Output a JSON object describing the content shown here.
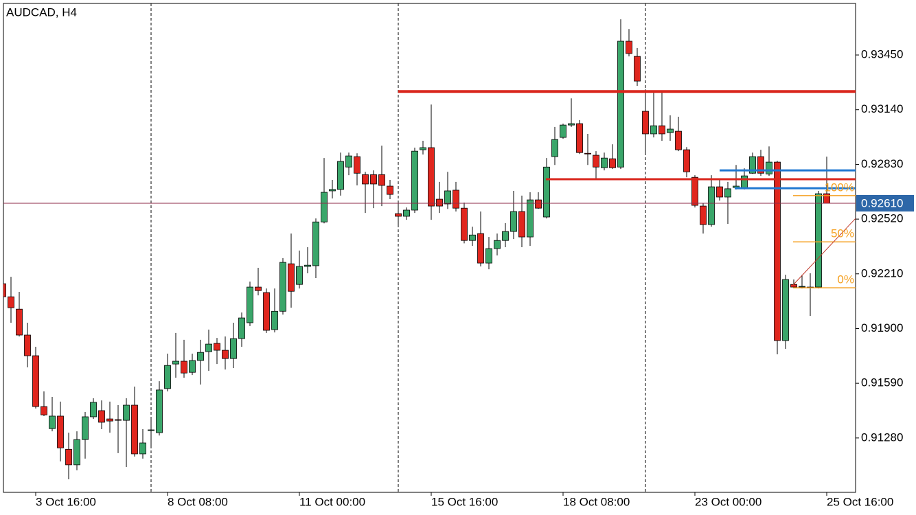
{
  "chart_data": {
    "type": "candlestick",
    "title": "AUDCAD, H4",
    "categories": [
      null,
      null,
      null,
      null,
      "3 Oct 16:00",
      null,
      null,
      null,
      null,
      null,
      null,
      null,
      null,
      null,
      null,
      null,
      null,
      null,
      null,
      null,
      "8 Oct 08:00",
      null,
      null,
      null,
      null,
      null,
      null,
      null,
      null,
      null,
      null,
      null,
      null,
      null,
      null,
      null,
      "11 Oct 00:00",
      null,
      null,
      null,
      null,
      null,
      null,
      null,
      null,
      null,
      null,
      null,
      null,
      null,
      null,
      null,
      "15 Oct 16:00",
      null,
      null,
      null,
      null,
      null,
      null,
      null,
      null,
      null,
      null,
      null,
      null,
      null,
      null,
      null,
      "18 Oct 08:00",
      null,
      null,
      null,
      null,
      null,
      null,
      null,
      null,
      null,
      null,
      null,
      null,
      null,
      null,
      null,
      "23 Oct 00:00",
      null,
      null,
      null,
      null,
      null,
      null,
      null,
      null,
      null,
      null,
      null,
      null,
      null,
      null,
      null,
      "25 Oct 16:00"
    ],
    "open": [
      0.92154,
      0.9208,
      0.9201,
      0.91863,
      0.91746,
      0.91458,
      0.91333,
      0.91404,
      0.91216,
      0.91128,
      0.91271,
      0.914,
      0.91435,
      0.91388,
      0.91384,
      0.9138,
      0.91466,
      0.9119,
      0.91322,
      0.9131,
      0.9156,
      0.91699,
      0.91715,
      0.91652,
      0.91719,
      0.91769,
      0.91816,
      0.91777,
      0.9173,
      0.91843,
      0.91933,
      0.92135,
      0.92104,
      0.91894,
      0.91998,
      0.92267,
      0.9215,
      0.92252,
      0.92256,
      0.92504,
      0.9268,
      0.92688,
      0.92815,
      0.92874,
      0.92772,
      0.92772,
      0.92772,
      0.92707,
      0.92551,
      0.92536,
      0.92571,
      0.92913,
      0.92925,
      0.92633,
      0.92606,
      0.92684,
      0.92582,
      0.92399,
      0.92438,
      0.92271,
      0.92353,
      0.92399,
      0.9245,
      0.92563,
      0.92419,
      0.92629,
      0.92532,
      0.92874,
      0.92983,
      0.93053,
      0.93061,
      0.92893,
      0.92882,
      0.92811,
      0.92862,
      0.92815,
      0.93528,
      0.93442,
      0.93131,
      0.93003,
      0.93049,
      0.9301,
      0.93018,
      0.92913,
      0.92757,
      0.92594,
      0.92489,
      0.92703,
      0.92645,
      0.92699,
      0.92692,
      0.9278,
      0.92874,
      0.92776,
      0.92843,
      0.91832,
      0.9215,
      0.92135,
      0.92135,
      0.92135,
      0.92664
    ],
    "high": [
      0.92186,
      0.92193,
      0.92108,
      0.91933,
      0.91797,
      0.91544,
      0.91513,
      0.91486,
      0.9131,
      0.91318,
      0.91427,
      0.91505,
      0.91493,
      0.91486,
      0.91466,
      0.91505,
      0.91571,
      0.9133,
      0.91388,
      0.91602,
      0.91758,
      0.91875,
      0.91836,
      0.91758,
      0.91836,
      0.91894,
      0.91847,
      0.91855,
      0.91933,
      0.91991,
      0.92166,
      0.92244,
      0.92127,
      0.92127,
      0.92299,
      0.92438,
      0.92342,
      0.92361,
      0.92524,
      0.92866,
      0.92742,
      0.92897,
      0.92897,
      0.92893,
      0.92788,
      0.92796,
      0.92936,
      0.92742,
      0.92614,
      0.92586,
      0.92925,
      0.92964,
      0.93169,
      0.92731,
      0.92788,
      0.92731,
      0.92614,
      0.92477,
      0.92563,
      0.92419,
      0.92438,
      0.92497,
      0.9268,
      0.92653,
      0.92672,
      0.92672,
      0.92866,
      0.93042,
      0.93061,
      0.93204,
      0.93081,
      0.93003,
      0.92905,
      0.92897,
      0.92944,
      0.93652,
      0.93597,
      0.93489,
      0.93255,
      0.93236,
      0.93247,
      0.93108,
      0.931,
      0.92928,
      0.92769,
      0.9261,
      0.92769,
      0.92742,
      0.92731,
      0.92827,
      0.92808,
      0.92897,
      0.92913,
      0.92932,
      0.9285,
      0.92205,
      0.92178,
      0.92205,
      0.92213,
      0.9268,
      0.92874
    ],
    "low": [
      0.92049,
      0.91933,
      0.91855,
      0.9168,
      0.91447,
      0.91404,
      0.91318,
      0.91147,
      0.91046,
      0.91097,
      0.91163,
      0.91388,
      0.9133,
      0.9131,
      0.91194,
      0.91116,
      0.91175,
      0.91163,
      0.91232,
      0.91294,
      0.91544,
      0.91621,
      0.91621,
      0.91637,
      0.91583,
      0.9166,
      0.91699,
      0.91668,
      0.91676,
      0.91797,
      0.91914,
      0.92088,
      0.91875,
      0.91878,
      0.91979,
      0.92018,
      0.92127,
      0.92213,
      0.92186,
      0.92496,
      0.92637,
      0.92653,
      0.92769,
      0.92711,
      0.92555,
      0.92582,
      0.92594,
      0.92633,
      0.92477,
      0.92516,
      0.92555,
      0.92886,
      0.92516,
      0.92555,
      0.92578,
      0.92563,
      0.92383,
      0.92368,
      0.92252,
      0.92236,
      0.92314,
      0.92361,
      0.92407,
      0.92361,
      0.92368,
      0.92578,
      0.92524,
      0.92827,
      0.92975,
      0.93042,
      0.92889,
      0.92827,
      0.9275,
      0.92796,
      0.92804,
      0.92804,
      0.93442,
      0.93275,
      0.92897,
      0.92983,
      0.92964,
      0.92964,
      0.92905,
      0.92757,
      0.92586,
      0.92438,
      0.92477,
      0.92625,
      0.92493,
      0.92688,
      0.92688,
      0.92776,
      0.92765,
      0.92765,
      0.91754,
      0.91785,
      0.92131,
      0.92127,
      0.91972,
      0.92127,
      0.9261
    ],
    "close": [
      0.9208,
      0.92018,
      0.91863,
      0.91746,
      0.91458,
      0.91411,
      0.91404,
      0.91224,
      0.91128,
      0.91271,
      0.914,
      0.91482,
      0.91369,
      0.91376,
      0.9138,
      0.91466,
      0.9119,
      0.91252,
      0.91326,
      0.91552,
      0.91691,
      0.91715,
      0.91648,
      0.91719,
      0.91765,
      0.91812,
      0.91777,
      0.9173,
      0.91843,
      0.9196,
      0.92135,
      0.92115,
      0.9189,
      0.91998,
      0.92275,
      0.92111,
      0.92252,
      0.92259,
      0.92504,
      0.92672,
      0.92688,
      0.92847,
      0.92878,
      0.9278,
      0.92719,
      0.92719,
      0.92711,
      0.9266,
      0.92536,
      0.92571,
      0.92905,
      0.92925,
      0.92594,
      0.92594,
      0.9268,
      0.92582,
      0.92399,
      0.9243,
      0.92271,
      0.92353,
      0.92399,
      0.9245,
      0.92563,
      0.92419,
      0.92629,
      0.92582,
      0.92815,
      0.92971,
      0.93053,
      0.93061,
      0.92897,
      0.92889,
      0.92815,
      0.92866,
      0.92811,
      0.93528,
      0.93458,
      0.93302,
      0.93003,
      0.93049,
      0.93003,
      0.9303,
      0.92913,
      0.92788,
      0.92598,
      0.92489,
      0.92703,
      0.92645,
      0.92692,
      0.92707,
      0.92765,
      0.92874,
      0.9278,
      0.92843,
      0.91832,
      0.92178,
      0.92135,
      0.92139,
      0.92131,
      0.92664,
      0.9261
    ],
    "up_color": "#3aa66a",
    "down_color": "#e0261e",
    "ylim": [
      0.90972,
      0.93742
    ],
    "yticks": [
      {
        "value": 0.9345,
        "label": "0.93450"
      },
      {
        "value": 0.9314,
        "label": "0.93140"
      },
      {
        "value": 0.9283,
        "label": "0.92830"
      },
      {
        "value": 0.9252,
        "label": "0.92520"
      },
      {
        "value": 0.9221,
        "label": "0.92210"
      },
      {
        "value": 0.919,
        "label": "0.91900"
      },
      {
        "value": 0.9159,
        "label": "0.91590"
      },
      {
        "value": 0.9128,
        "label": "0.91280"
      }
    ],
    "current_price": {
      "value": 0.9261,
      "label": "0.92610",
      "color": "#8e2a4a",
      "box_color": "#2d67a8"
    },
    "levels": [
      {
        "value": 0.93243,
        "color": "#d9261c"
      },
      {
        "value": 0.92746,
        "color": "#d9261c"
      },
      {
        "value": 0.92796,
        "color": "#1f78d1"
      },
      {
        "value": 0.92695,
        "color": "#1f78d1"
      }
    ],
    "fibonacci": {
      "color": "#f5a020",
      "levels": [
        {
          "label": "100%",
          "price": 0.92653
        },
        {
          "label": "50%",
          "price": 0.92391
        },
        {
          "label": "0%",
          "price": 0.92131
        }
      ]
    },
    "trendline": {
      "color": "#c0392b",
      "values": [
        0.92147,
        0.92524
      ]
    },
    "separators": true
  }
}
